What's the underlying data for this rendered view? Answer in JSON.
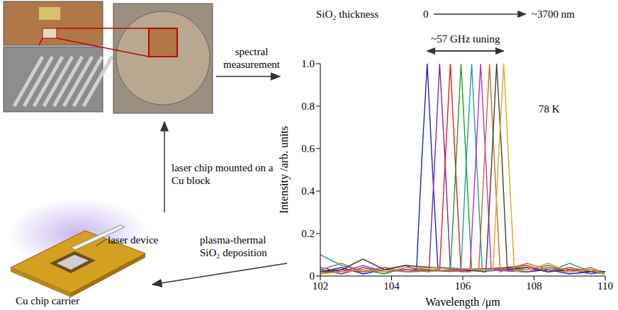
{
  "chart_data": {
    "type": "line",
    "xlabel": "Wavelength /μm",
    "ylabel": "Intensity /arb. units",
    "xlim": [
      102,
      110
    ],
    "xticks": [
      102,
      104,
      106,
      108,
      110
    ],
    "ylim": [
      0,
      1
    ],
    "yticks": [
      0,
      0.2,
      0.4,
      0.6,
      0.8,
      {
        "value": 1,
        "label": "1.0"
      }
    ],
    "grid": false,
    "annotations": {
      "temperature": "78 K",
      "tuning": "~57 GHz tuning",
      "thickness_title": "SiO₂ thickness",
      "thickness_from": "0",
      "thickness_to": "~3700 nm"
    },
    "series": [
      {
        "color": "#2020d0",
        "x": [
          102,
          102.6,
          103.2,
          103.8,
          104.4,
          104.7,
          104.85,
          105,
          105.15,
          105.3,
          107.8,
          108.4,
          109,
          109.6,
          110
        ],
        "values": [
          0.02,
          0.04,
          0.01,
          0.03,
          0.05,
          0.03,
          0.55,
          1,
          0.5,
          0.04,
          0.02,
          0.03,
          0.01,
          0.02,
          0.01
        ]
      },
      {
        "color": "#7a2aa8",
        "x": [
          102,
          102.6,
          103.2,
          103.8,
          104.4,
          105.05,
          105.2,
          105.35,
          105.5,
          105.65,
          107.8,
          108.4,
          109,
          109.6,
          110
        ],
        "values": [
          0.03,
          0.01,
          0.04,
          0.02,
          0.03,
          0.02,
          0.5,
          1,
          0.55,
          0.03,
          0.04,
          0.02,
          0.03,
          0.01,
          0.02
        ]
      },
      {
        "color": "#e02020",
        "x": [
          102,
          102.6,
          103.2,
          103.8,
          104.4,
          105.35,
          105.5,
          105.65,
          105.8,
          105.95,
          107.8,
          108.4,
          109,
          109.6,
          110
        ],
        "values": [
          0.01,
          0.03,
          0.02,
          0.04,
          0.02,
          0.03,
          0.52,
          1,
          0.5,
          0.02,
          0.05,
          0.02,
          0.04,
          0.02,
          0.01
        ]
      },
      {
        "color": "#20a020",
        "x": [
          102,
          102.6,
          103.2,
          103.8,
          104.4,
          105.65,
          105.8,
          105.95,
          106.1,
          106.25,
          107.8,
          108.4,
          109,
          109.6,
          110
        ],
        "values": [
          0.02,
          0.02,
          0.03,
          0.01,
          0.04,
          0.02,
          0.5,
          1,
          0.52,
          0.03,
          0.03,
          0.05,
          0.02,
          0.03,
          0.01
        ]
      },
      {
        "color": "#1aa0a8",
        "x": [
          102,
          102.6,
          103.2,
          103.8,
          104.4,
          105.95,
          106.1,
          106.25,
          106.4,
          106.55,
          107.8,
          108.4,
          109,
          109.6,
          110
        ],
        "values": [
          0.1,
          0.05,
          0.02,
          0.03,
          0.02,
          0.03,
          0.55,
          1,
          0.5,
          0.02,
          0.04,
          0.02,
          0.06,
          0.02,
          0.01
        ]
      },
      {
        "color": "#c828c8",
        "x": [
          102,
          102.6,
          103.2,
          103.8,
          104.4,
          106.2,
          106.35,
          106.5,
          106.65,
          106.8,
          107.8,
          108.4,
          109,
          109.6,
          110
        ],
        "values": [
          0.04,
          0.02,
          0.05,
          0.02,
          0.03,
          0.02,
          0.5,
          1,
          0.53,
          0.03,
          0.02,
          0.04,
          0.02,
          0.03,
          0.02
        ]
      },
      {
        "color": "#c07028",
        "x": [
          102,
          102.6,
          103.2,
          103.8,
          104.4,
          106.45,
          106.6,
          106.75,
          106.9,
          107.05,
          107.8,
          108.4,
          109,
          109.6,
          110
        ],
        "values": [
          0.03,
          0.06,
          0.02,
          0.04,
          0.02,
          0.03,
          0.52,
          1,
          0.5,
          0.02,
          0.06,
          0.03,
          0.02,
          0.04,
          0.01
        ]
      },
      {
        "color": "#404040",
        "x": [
          102,
          102.6,
          103.2,
          103.8,
          104.4,
          106.65,
          106.8,
          106.95,
          107.1,
          107.25,
          107.8,
          108.4,
          109,
          109.6,
          110
        ],
        "values": [
          0.02,
          0.03,
          0.08,
          0.03,
          0.05,
          0.02,
          0.5,
          1,
          0.55,
          0.03,
          0.04,
          0.02,
          0.03,
          0.02,
          0.02
        ]
      },
      {
        "color": "#e8a020",
        "x": [
          102,
          102.6,
          103.2,
          103.8,
          104.4,
          106.85,
          107,
          107.15,
          107.3,
          107.45,
          107.8,
          108.4,
          109,
          109.6,
          110
        ],
        "values": [
          0.01,
          0.02,
          0.03,
          0.02,
          0.04,
          0.03,
          0.55,
          1,
          0.5,
          0.02,
          0.03,
          0.06,
          0.02,
          0.03,
          0.01
        ]
      }
    ]
  },
  "diagram": {
    "arrows": [
      {
        "label": "spectral measurement"
      },
      {
        "label": "laser chip mounted on a Cu block"
      },
      {
        "label": "plasma-thermal SiO₂ deposition"
      }
    ],
    "parts": {
      "laser_device": "laser device",
      "chip_carrier": "Cu chip carrier"
    }
  }
}
